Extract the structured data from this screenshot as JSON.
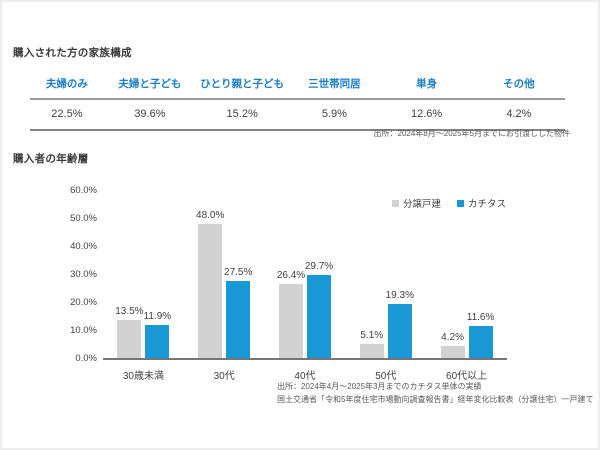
{
  "family_section": {
    "title": "購入された方の家族構成",
    "header_color": "#1b7ec4",
    "columns": [
      {
        "label": "夫婦のみ",
        "value": "22.5%"
      },
      {
        "label": "夫婦と子ども",
        "value": "39.6%"
      },
      {
        "label": "ひとり親と子ども",
        "value": "15.2%"
      },
      {
        "label": "三世帯同居",
        "value": "5.9%"
      },
      {
        "label": "単身",
        "value": "12.6%"
      },
      {
        "label": "その他",
        "value": "4.2%"
      }
    ],
    "source": "出所：2024年8月～2025年5月までにお引渡しした物件"
  },
  "age_section": {
    "title": "購入者の年齢層",
    "sources": [
      "出所：2024年4月～2025年3月までのカチタス単体の実績",
      "国土交通省「令和5年度住宅市場動向調査報告書」経年変化比較表（分譲住宅）一戸建て"
    ]
  },
  "chart_data": {
    "type": "bar",
    "title": "購入者の年齢層",
    "categories": [
      "30歳未満",
      "30代",
      "40代",
      "50代",
      "60代以上"
    ],
    "series": [
      {
        "name": "分譲戸建",
        "color": "#d2d2d2",
        "values": [
          13.5,
          48.0,
          26.4,
          5.1,
          4.2
        ]
      },
      {
        "name": "カチタス",
        "color": "#1899d6",
        "values": [
          11.9,
          27.5,
          29.7,
          19.3,
          11.6
        ]
      }
    ],
    "xlabel": "",
    "ylabel": "",
    "ylim": [
      0,
      60
    ],
    "ytick_step": 10,
    "ytick_format": "one_decimal_percent",
    "grid": false,
    "legend_position": "top-right",
    "value_labels": true,
    "axis_line_color": "#767676",
    "label_color": "#404040"
  }
}
